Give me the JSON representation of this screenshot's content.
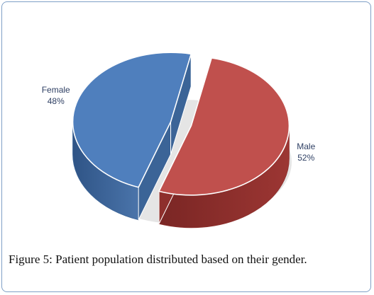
{
  "caption": {
    "label": "Figure 5:",
    "text": "Patient population distributed based on their gender."
  },
  "chart_data": {
    "type": "pie",
    "style": "3d-exploded",
    "slices": [
      {
        "name": "Female",
        "value_label": "48%",
        "value": 48,
        "color": "#4f7fbd",
        "side_color": "#3b6497"
      },
      {
        "name": "Male",
        "value_label": "52%",
        "value": 52,
        "color": "#c0504d",
        "side_color": "#8e2f2c"
      }
    ],
    "legend": "none"
  }
}
